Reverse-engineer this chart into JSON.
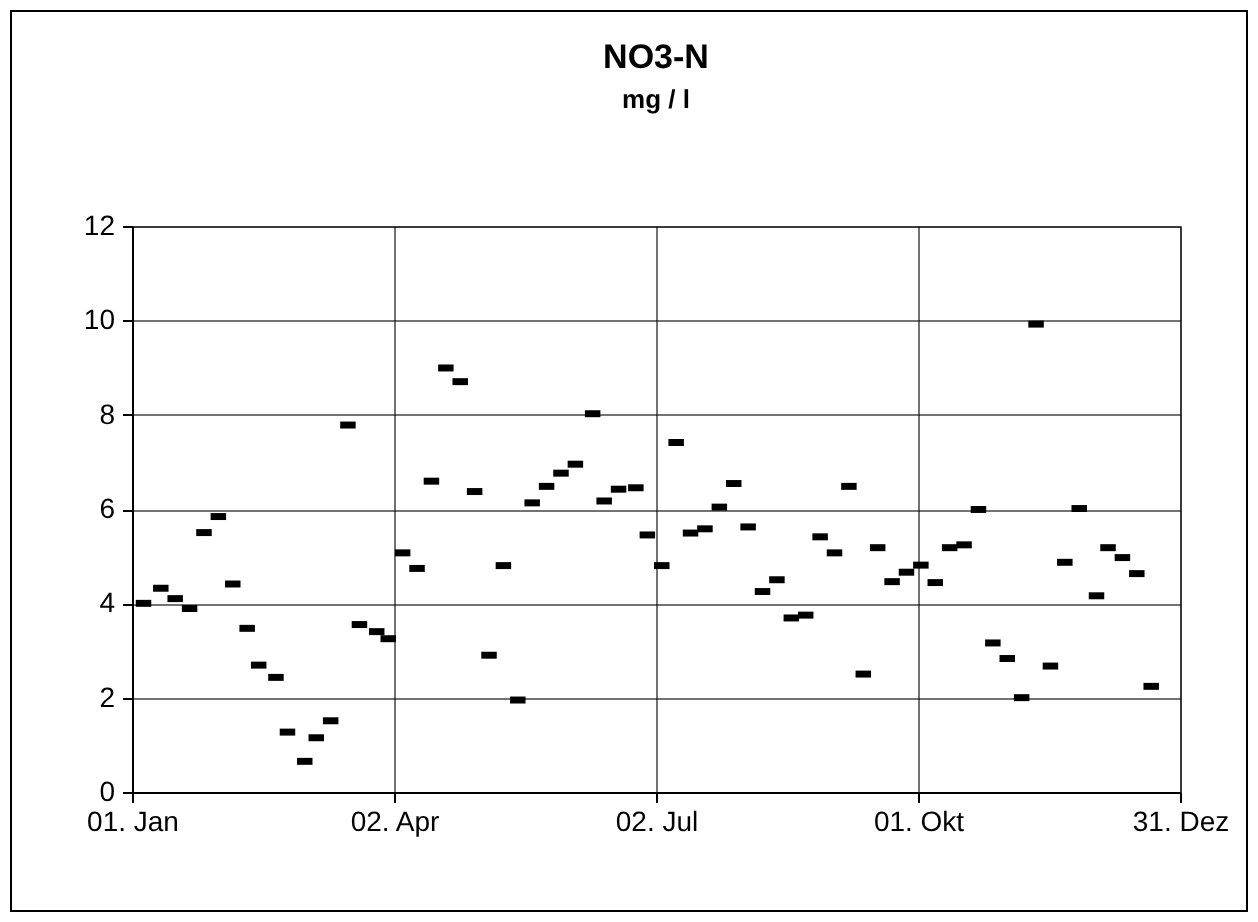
{
  "chart_data": {
    "type": "scatter",
    "title": "NO3-N",
    "subtitle": "mg / l",
    "x": [
      "--01-05",
      "--01-11",
      "--01-16",
      "--01-21",
      "--01-26",
      "--01-31",
      "--02-05",
      "--02-10",
      "--02-14",
      "--02-20",
      "--02-24",
      "--03-02",
      "--03-06",
      "--03-11",
      "--03-17",
      "--03-21",
      "--03-27",
      "--03-31",
      "--04-05",
      "--04-10",
      "--04-15",
      "--04-20",
      "--04-25",
      "--04-30",
      "--05-05",
      "--05-10",
      "--05-15",
      "--05-20",
      "--05-25",
      "--05-30",
      "--06-04",
      "--06-10",
      "--06-14",
      "--06-19",
      "--06-25",
      "--06-29",
      "--07-04",
      "--07-09",
      "--07-14",
      "--07-19",
      "--07-24",
      "--07-29",
      "--08-03",
      "--08-08",
      "--08-13",
      "--08-18",
      "--08-23",
      "--08-28",
      "--09-02",
      "--09-07",
      "--09-12",
      "--09-17",
      "--09-22",
      "--09-27",
      "--10-02",
      "--10-07",
      "--10-12",
      "--10-17",
      "--10-22",
      "--10-27",
      "--11-01",
      "--11-06",
      "--11-11",
      "--11-16",
      "--11-21",
      "--11-26",
      "--12-02",
      "--12-06",
      "--12-11",
      "--12-16",
      "--12-21"
    ],
    "values": [
      4.0,
      4.32,
      4.1,
      3.89,
      5.5,
      5.84,
      4.41,
      3.47,
      2.69,
      2.43,
      1.27,
      0.65,
      1.15,
      1.51,
      7.78,
      3.55,
      3.4,
      3.25,
      5.07,
      4.74,
      6.59,
      8.99,
      8.7,
      6.37,
      2.9,
      4.8,
      1.95,
      6.13,
      6.48,
      6.76,
      6.95,
      8.02,
      6.17,
      6.42,
      6.45,
      5.45,
      4.8,
      7.41,
      5.49,
      5.58,
      6.04,
      6.54,
      5.62,
      4.25,
      4.5,
      3.69,
      3.75,
      5.41,
      5.07,
      6.48,
      2.5,
      5.18,
      4.46,
      4.66,
      4.81,
      4.44,
      5.18,
      5.24,
      5.99,
      3.16,
      2.83,
      2.0,
      9.92,
      2.67,
      4.87,
      6.01,
      4.16,
      5.18,
      4.97,
      4.63,
      2.24
    ],
    "color": "#000000",
    "marker": "square",
    "xlim": [
      "--01-01",
      "--12-31"
    ],
    "xticks": [
      {
        "value": "--01-01",
        "label": "01. Jan"
      },
      {
        "value": "--04-02",
        "label": "02. Apr"
      },
      {
        "value": "--07-02",
        "label": "02. Jul"
      },
      {
        "value": "--10-01",
        "label": "01. Okt"
      },
      {
        "value": "--12-31",
        "label": "31. Dez"
      }
    ],
    "ylim": [
      0,
      12
    ],
    "yticks": [
      0,
      2,
      4,
      6,
      8,
      10,
      12
    ],
    "grid": true
  }
}
